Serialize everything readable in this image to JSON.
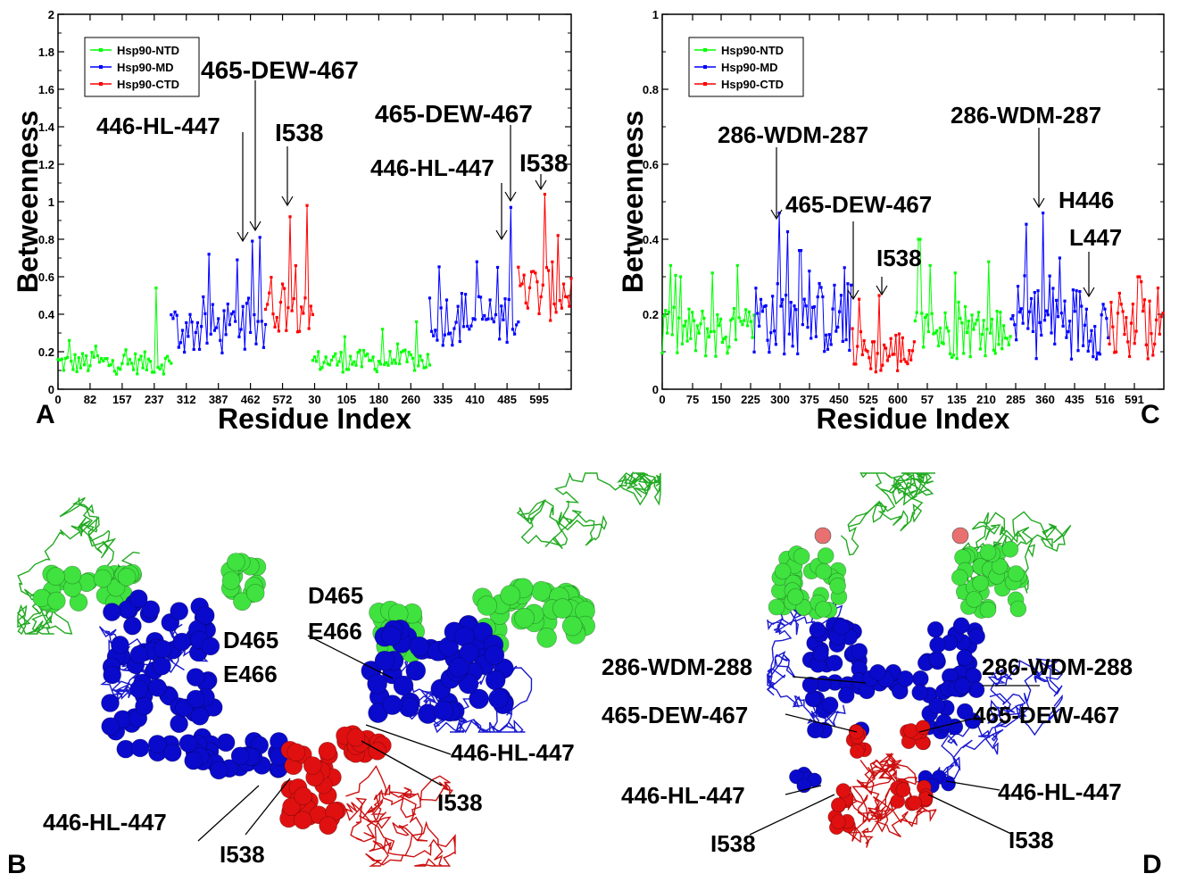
{
  "panels": {
    "A": "A",
    "B": "B",
    "C": "C",
    "D": "D"
  },
  "colors": {
    "ntd": "#00ff00",
    "md": "#0000ff",
    "ctd": "#ff0000",
    "ntd_cartoon": "#22aa22",
    "md_cartoon": "#1a1ad0",
    "ctd_cartoon": "#cc1111",
    "ntd_sphere": "#3fe23f",
    "md_sphere": "#0a0acc",
    "ctd_sphere": "#e01010"
  },
  "chart_data": [
    {
      "type": "line",
      "panel": "A",
      "xlabel": "Residue Index",
      "ylabel": "Betweenness",
      "ylim": [
        0,
        2
      ],
      "yticks": [
        "0",
        "0.2",
        "0.4",
        "0.6",
        "0.8",
        "1",
        "1.2",
        "1.4",
        "1.6",
        "1.8",
        "2"
      ],
      "xticks": [
        "0",
        "82",
        "157",
        "237",
        "312",
        "387",
        "462",
        "572",
        "30",
        "105",
        "180",
        "260",
        "335",
        "410",
        "485",
        "595"
      ],
      "legend": {
        "placement": "top-left",
        "entries": [
          "Hsp90-NTD",
          "Hsp90-MD",
          "Hsp90-CTD"
        ]
      },
      "series": [
        {
          "name": "Hsp90-NTD",
          "color": "#00ff00",
          "segments": [
            {
              "x_range": [
                0,
                60
              ],
              "baseline": 0.14,
              "spread": 0.06,
              "peaks": [
                [
                  6,
                  0.26
                ],
                [
                  20,
                  0.23
                ],
                [
                  52,
                  0.54
                ]
              ]
            },
            {
              "x_range": [
                135,
                197
              ],
              "baseline": 0.15,
              "spread": 0.06,
              "peaks": [
                [
                  152,
                  0.28
                ],
                [
                  172,
                  0.32
                ],
                [
                  190,
                  0.36
                ]
              ]
            }
          ]
        },
        {
          "name": "Hsp90-MD",
          "color": "#0000ff",
          "segments": [
            {
              "x_range": [
                60,
                110
              ],
              "baseline": 0.32,
              "spread": 0.14,
              "peaks": [
                [
                  80,
                  0.72
                ],
                [
                  95,
                  0.69
                ],
                [
                  103,
                  0.79
                ],
                [
                  107,
                  0.81
                ]
              ]
            },
            {
              "x_range": [
                197,
                244
              ],
              "baseline": 0.38,
              "spread": 0.15,
              "peaks": [
                [
                  222,
                  0.68
                ],
                [
                  233,
                  0.65
                ],
                [
                  240,
                  0.97
                ]
              ]
            }
          ]
        },
        {
          "name": "Hsp90-CTD",
          "color": "#ff0000",
          "segments": [
            {
              "x_range": [
                110,
                135
              ],
              "baseline": 0.46,
              "spread": 0.16,
              "peaks": [
                [
                  123,
                  0.92
                ],
                [
                  132,
                  0.98
                ]
              ]
            },
            {
              "x_range": [
                244,
                272
              ],
              "baseline": 0.52,
              "spread": 0.16,
              "peaks": [
                [
                  258,
                  1.04
                ],
                [
                  265,
                  0.82
                ]
              ]
            }
          ]
        }
      ],
      "annotations": [
        {
          "text": "446-HL-447",
          "x": 99,
          "y": 0.8
        },
        {
          "text": "465-DEW-467",
          "x": 103,
          "y": 0.83
        },
        {
          "text": "I538",
          "x": 119,
          "y": 0.97
        },
        {
          "text": "446-HL-447",
          "x": 232,
          "y": 0.78
        },
        {
          "text": "465-DEW-467",
          "x": 239,
          "y": 0.98
        },
        {
          "text": "I538",
          "x": 255,
          "y": 1.07
        }
      ]
    },
    {
      "type": "line",
      "panel": "C",
      "xlabel": "Residue Index",
      "ylabel": "Betweenness",
      "ylim": [
        0,
        1
      ],
      "yticks": [
        "0",
        "0.2",
        "0.4",
        "0.6",
        "0.8",
        "1"
      ],
      "xticks": [
        "0",
        "75",
        "150",
        "225",
        "300",
        "375",
        "450",
        "525",
        "600",
        "57",
        "135",
        "210",
        "285",
        "360",
        "435",
        "516",
        "591"
      ],
      "legend": {
        "placement": "top-left",
        "entries": [
          "Hsp90-NTD",
          "Hsp90-MD",
          "Hsp90-CTD"
        ]
      },
      "series": [
        {
          "name": "Hsp90-NTD",
          "color": "#00ff00",
          "segments": [
            {
              "x_range": [
                0,
                220
              ],
              "baseline": 0.15,
              "spread": 0.07,
              "peaks": [
                [
                  20,
                  0.33
                ],
                [
                  45,
                  0.3
                ],
                [
                  120,
                  0.31
                ],
                [
                  180,
                  0.33
                ]
              ]
            },
            {
              "x_range": [
                605,
                835
              ],
              "baseline": 0.15,
              "spread": 0.07,
              "peaks": [
                [
                  615,
                  0.4
                ],
                [
                  640,
                  0.33
                ],
                [
                  700,
                  0.31
                ],
                [
                  780,
                  0.34
                ]
              ]
            }
          ]
        },
        {
          "name": "Hsp90-MD",
          "color": "#0000ff",
          "segments": [
            {
              "x_range": [
                220,
                455
              ],
              "baseline": 0.19,
              "spread": 0.1,
              "peaks": [
                [
                  280,
                  0.47
                ],
                [
                  300,
                  0.42
                ],
                [
                  330,
                  0.37
                ]
              ]
            },
            {
              "x_range": [
                835,
                1070
              ],
              "baseline": 0.18,
              "spread": 0.1,
              "peaks": [
                [
                  870,
                  0.44
                ],
                [
                  910,
                  0.47
                ],
                [
                  950,
                  0.35
                ]
              ]
            }
          ]
        },
        {
          "name": "Hsp90-CTD",
          "color": "#ff0000",
          "segments": [
            {
              "x_range": [
                455,
                605
              ],
              "baseline": 0.1,
              "spread": 0.06,
              "peaks": [
                [
                  470,
                  0.24
                ],
                [
                  520,
                  0.25
                ]
              ]
            },
            {
              "x_range": [
                1070,
                1200
              ],
              "baseline": 0.16,
              "spread": 0.08,
              "peaks": [
                [
                  1140,
                  0.3
                ],
                [
                  1185,
                  0.27
                ]
              ]
            }
          ]
        }
      ],
      "annotations": [
        {
          "text": "286-WDM-287",
          "x": 282,
          "y": 0.44
        },
        {
          "text": "465-DEW-467",
          "x": 448,
          "y": 0.23
        },
        {
          "text": "I538",
          "x": 510,
          "y": 0.25
        },
        {
          "text": "286-WDM-287",
          "x": 905,
          "y": 0.48
        },
        {
          "text": "H446",
          "x": 0,
          "y": 0
        },
        {
          "text": "L447",
          "x": 1000,
          "y": 0.24
        }
      ]
    }
  ],
  "structure_labels": {
    "B": [
      "D465",
      "E466",
      "D465",
      "E466",
      "446-HL-447",
      "I538",
      "446-HL-447",
      "I538"
    ],
    "D": [
      "286-WDM-288",
      "286-WDM-288",
      "465-DEW-467",
      "465-DEW-467",
      "446-HL-447",
      "446-HL-447",
      "I538",
      "I538"
    ]
  }
}
